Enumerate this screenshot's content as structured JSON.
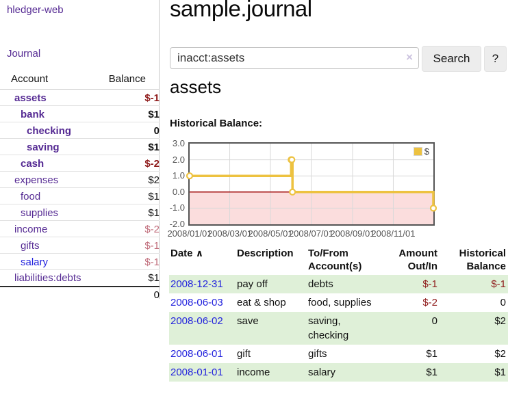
{
  "palette": {
    "link_purple": "#552a93",
    "link_blue": "#2222dd",
    "negative_strong": "#8e1a1a",
    "negative_muted": "#c06c7a",
    "row_stripe_green": "#dff0d8",
    "series_gold": "#edc240"
  },
  "sidebar": {
    "brand": "hledger-web",
    "journal_link": "Journal",
    "accounts_table": {
      "headers": [
        "Account",
        "Balance"
      ],
      "rows": [
        {
          "name": "assets",
          "balance": "$-1",
          "indent": 0,
          "bold": true,
          "balance_style": "negative-strong"
        },
        {
          "name": "bank",
          "balance": "$1",
          "indent": 1,
          "bold": true
        },
        {
          "name": "checking",
          "balance": "0",
          "indent": 2,
          "bold": true
        },
        {
          "name": "saving",
          "balance": "$1",
          "indent": 2,
          "bold": true
        },
        {
          "name": "cash",
          "balance": "$-2",
          "indent": 1,
          "bold": true,
          "balance_style": "negative-strong"
        },
        {
          "name": "expenses",
          "balance": "$2",
          "indent": 0
        },
        {
          "name": "food",
          "balance": "$1",
          "indent": 1
        },
        {
          "name": "supplies",
          "balance": "$1",
          "indent": 1
        },
        {
          "name": "income",
          "balance": "$-2",
          "indent": 0,
          "balance_style": "negative-muted"
        },
        {
          "name": "gifts",
          "balance": "$-1",
          "indent": 1,
          "balance_style": "negative-muted"
        },
        {
          "name": "salary",
          "balance": "$-1",
          "indent": 1,
          "balance_style": "negative-muted",
          "link_style": "blue"
        },
        {
          "name": "liabilities:debts",
          "balance": "$1",
          "indent": 0
        }
      ],
      "total": "0"
    }
  },
  "header": {
    "title": "sample.journal"
  },
  "search": {
    "value": "inacct:assets",
    "clear_icon": "×",
    "button_label": "Search",
    "help_label": "?"
  },
  "account_page": {
    "heading": "assets",
    "chart_title": "Historical Balance:"
  },
  "chart_data": {
    "type": "line",
    "step": true,
    "title": "Historical Balance:",
    "series": [
      {
        "name": "$",
        "color": "#edc240",
        "points": [
          [
            "2008-01-01",
            1
          ],
          [
            "2008-06-01",
            2
          ],
          [
            "2008-06-02",
            2
          ],
          [
            "2008-06-03",
            0
          ],
          [
            "2008-12-31",
            -1
          ]
        ]
      }
    ],
    "x_start": "2008-01-01",
    "x_end": "2008-12-31",
    "x_ticks": [
      {
        "label": "2008/01/01",
        "date": "2008-01-01"
      },
      {
        "label": "2008/03/01",
        "date": "2008-03-01"
      },
      {
        "label": "2008/05/01",
        "date": "2008-05-01"
      },
      {
        "label": "2008/07/01",
        "date": "2008-07-01"
      },
      {
        "label": "2008/09/01",
        "date": "2008-09-01"
      },
      {
        "label": "2008/11/01",
        "date": "2008-11-01"
      }
    ],
    "y_ticks": [
      "3.0",
      "2.0",
      "1.0",
      "0.0",
      "-1.0",
      "-2.0"
    ],
    "ylim": [
      -2,
      3
    ],
    "grid": true,
    "legend": {
      "label": "$",
      "position": "top-right"
    },
    "negative_region_color": "#fbdddd",
    "zero_line_color": "#a00b0b",
    "grid_color": "#d9d9d9",
    "border_color": "#545454"
  },
  "register_table": {
    "headers": [
      "Date",
      "Description",
      "To/From Account(s)",
      "Amount Out/In",
      "Historical Balance"
    ],
    "sort_icon": "∧",
    "rows": [
      {
        "date": "2008-12-31",
        "description": "pay off",
        "accounts": "debts",
        "amount": "$-1",
        "amount_negative": true,
        "balance": "$-1",
        "balance_negative": true
      },
      {
        "date": "2008-06-03",
        "description": "eat & shop",
        "accounts": "food, supplies",
        "amount": "$-2",
        "amount_negative": true,
        "balance": "0"
      },
      {
        "date": "2008-06-02",
        "description": "save",
        "accounts": "saving, checking",
        "amount": "0",
        "balance": "$2"
      },
      {
        "date": "2008-06-01",
        "description": "gift",
        "accounts": "gifts",
        "amount": "$1",
        "balance": "$2"
      },
      {
        "date": "2008-01-01",
        "description": "income",
        "accounts": "salary",
        "amount": "$1",
        "balance": "$1"
      }
    ]
  }
}
